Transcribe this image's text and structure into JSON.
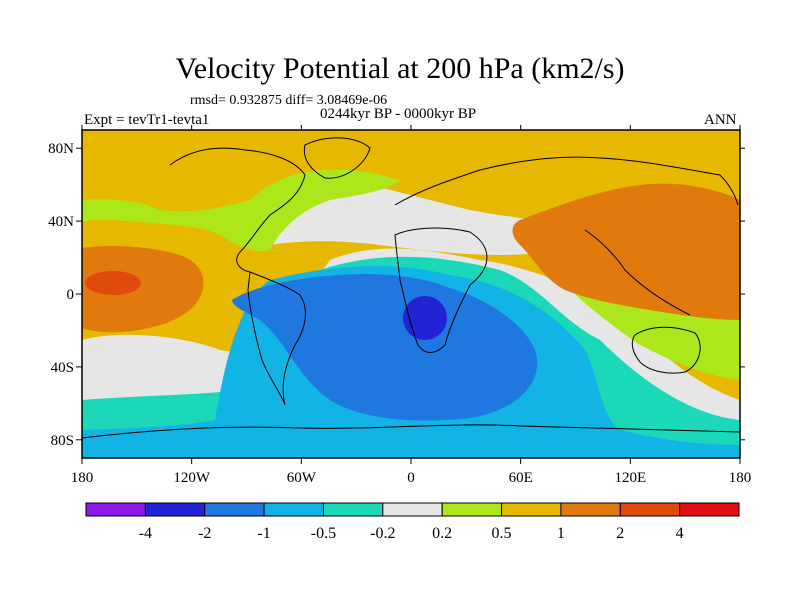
{
  "chart_data": {
    "type": "map-contour",
    "title": "Velocity Potential at 200 hPa (km2/s)",
    "stats_line": "rmsd= 0.932875 diff= 3.08469e-06",
    "period_line": "0244kyr BP - 0000kyr BP",
    "experiment": "Expt = tevTr1-tevta1",
    "season": "ANN",
    "units": "km2/s",
    "lon_range": [
      -180,
      180
    ],
    "lat_range": [
      -90,
      90
    ],
    "x_ticks": [
      {
        "lon": -180,
        "label": "180"
      },
      {
        "lon": -120,
        "label": "120W"
      },
      {
        "lon": -60,
        "label": "60W"
      },
      {
        "lon": 0,
        "label": "0"
      },
      {
        "lon": 60,
        "label": "60E"
      },
      {
        "lon": 120,
        "label": "120E"
      },
      {
        "lon": 180,
        "label": "180"
      }
    ],
    "y_ticks": [
      {
        "lat": 80,
        "label": "80N"
      },
      {
        "lat": 40,
        "label": "40N"
      },
      {
        "lat": 0,
        "label": "0"
      },
      {
        "lat": -40,
        "label": "40S"
      },
      {
        "lat": -80,
        "label": "80S"
      }
    ],
    "colorbar": {
      "levels": [
        "-4",
        "-2",
        "-1",
        "-0.5",
        "-0.2",
        "0.2",
        "0.5",
        "1",
        "2",
        "4"
      ],
      "colors": [
        "#8f1be8",
        "#2323d6",
        "#1f78e0",
        "#12b4e6",
        "#1ad8b8",
        "#e6e6e6",
        "#aee61c",
        "#e6b800",
        "#e07a0c",
        "#e04a0c",
        "#e01010"
      ]
    },
    "features": [
      {
        "name": "central-pacific-maximum",
        "lon": -165,
        "lat": 10,
        "value_range": "2 to 4"
      },
      {
        "name": "south-atlantic-africa-minimum",
        "lon": 10,
        "lat": -10,
        "value_range": "-4 to -2"
      },
      {
        "name": "asia-maximum",
        "lon": 100,
        "lat": 30,
        "value_range": "1 to 2"
      }
    ]
  }
}
